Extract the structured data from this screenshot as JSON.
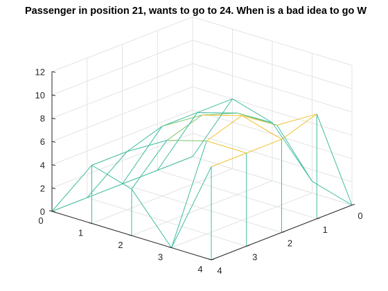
{
  "chart_data": {
    "type": "surface",
    "title": "Passenger in position 21, wants to go to 24. When is a bad idea to go W",
    "xlabel": "",
    "ylabel": "",
    "zlabel": "",
    "x_ticks": [
      "0",
      "1",
      "2",
      "3",
      "4"
    ],
    "y_ticks": [
      "0",
      "1",
      "2",
      "3",
      "4"
    ],
    "z_ticks": [
      "0",
      "2",
      "4",
      "6",
      "8",
      "10",
      "12"
    ],
    "xlim": [
      0,
      4
    ],
    "ylim": [
      0,
      4
    ],
    "zlim": [
      0,
      12
    ],
    "grid": true,
    "colormap": "parula",
    "edge_colors": {
      "low": "#3ebc9f",
      "mid": "#7cc36a",
      "high": "#f0c22c"
    },
    "z": [
      [
        0,
        0,
        0,
        0,
        0
      ],
      [
        5,
        5,
        6,
        6,
        6
      ],
      [
        4,
        7,
        8,
        7,
        5
      ],
      [
        0,
        8,
        9,
        7,
        1
      ],
      [
        8,
        8,
        8,
        9,
        0
      ]
    ]
  }
}
